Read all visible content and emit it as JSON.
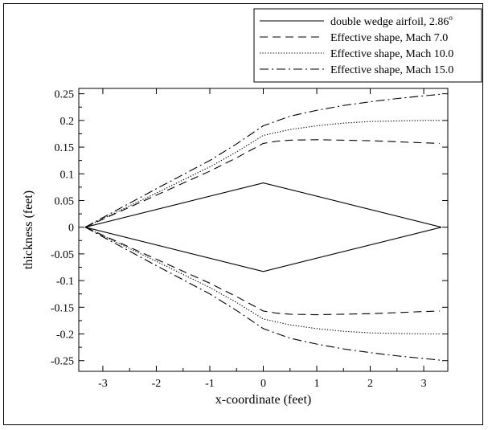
{
  "chart_data": {
    "type": "line",
    "title": "",
    "xlabel": "x-coordinate (feet)",
    "ylabel": "thickness (feet)",
    "xlim": [
      -3.45,
      3.45
    ],
    "ylim": [
      -0.27,
      0.26
    ],
    "x_ticks": [
      -3,
      -2,
      -1,
      0,
      1,
      2,
      3
    ],
    "x_tick_labels": [
      "-3",
      "-2",
      "-1",
      "0",
      "1",
      "2",
      "3"
    ],
    "y_ticks": [
      0.25,
      0.2,
      0.15,
      0.1,
      0.05,
      0,
      -0.05,
      -0.1,
      -0.15,
      -0.2,
      -0.25
    ],
    "y_tick_labels": [
      "0.25",
      "0.2",
      "0.15",
      "0.1",
      "0.05",
      "0",
      "-0.05",
      "-0.1",
      "-0.15",
      "-0.2",
      "-0.25"
    ],
    "grid": false,
    "legend_position": "top-right",
    "legend_box": true,
    "series": [
      {
        "name": "double wedge airfoil, 2.86",
        "name_superscript": "o",
        "dash": "solid",
        "color": "#000000",
        "x": [
          -3.33,
          0.0,
          3.33,
          0.0,
          -3.33
        ],
        "y": [
          0.0,
          0.083,
          0.0,
          -0.083,
          0.0
        ]
      },
      {
        "name": "Effective shape, Mach 7.0",
        "dash": "dashed",
        "color": "#000000",
        "upper_x": [
          -3.33,
          -3.0,
          -2.0,
          -1.0,
          -0.5,
          0.0,
          0.25,
          0.5,
          1.0,
          1.5,
          2.0,
          2.5,
          3.0,
          3.3
        ],
        "upper_y": [
          0.0,
          0.015,
          0.06,
          0.105,
          0.13,
          0.157,
          0.161,
          0.163,
          0.164,
          0.163,
          0.162,
          0.16,
          0.158,
          0.157
        ],
        "lower_x": [
          -3.33,
          -3.0,
          -2.0,
          -1.0,
          -0.5,
          0.0,
          0.25,
          0.5,
          1.0,
          1.5,
          2.0,
          2.5,
          3.0,
          3.3
        ],
        "lower_y": [
          0.0,
          -0.015,
          -0.06,
          -0.105,
          -0.13,
          -0.157,
          -0.161,
          -0.163,
          -0.164,
          -0.163,
          -0.162,
          -0.16,
          -0.158,
          -0.157
        ]
      },
      {
        "name": "Effective shape, Mach 10.0",
        "dash": "dotted",
        "color": "#000000",
        "upper_x": [
          -3.33,
          -3.0,
          -2.0,
          -1.0,
          -0.5,
          0.0,
          0.5,
          1.0,
          1.5,
          2.0,
          2.5,
          3.0,
          3.3
        ],
        "upper_y": [
          0.0,
          0.016,
          0.064,
          0.113,
          0.141,
          0.172,
          0.183,
          0.19,
          0.195,
          0.198,
          0.199,
          0.2,
          0.2
        ],
        "lower_x": [
          -3.33,
          -3.0,
          -2.0,
          -1.0,
          -0.5,
          0.0,
          0.5,
          1.0,
          1.5,
          2.0,
          2.5,
          3.0,
          3.3
        ],
        "lower_y": [
          0.0,
          -0.016,
          -0.064,
          -0.113,
          -0.141,
          -0.172,
          -0.183,
          -0.19,
          -0.195,
          -0.198,
          -0.199,
          -0.2,
          -0.2
        ]
      },
      {
        "name": "Effective shape, Mach 15.0",
        "dash": "dashdot",
        "color": "#000000",
        "upper_x": [
          -3.33,
          -3.0,
          -2.0,
          -1.0,
          -0.5,
          0.0,
          0.5,
          1.0,
          1.5,
          2.0,
          2.5,
          3.0,
          3.3
        ],
        "upper_y": [
          0.0,
          0.018,
          0.072,
          0.125,
          0.156,
          0.19,
          0.208,
          0.219,
          0.228,
          0.235,
          0.241,
          0.246,
          0.249
        ],
        "lower_x": [
          -3.33,
          -3.0,
          -2.0,
          -1.0,
          -0.5,
          0.0,
          0.5,
          1.0,
          1.5,
          2.0,
          2.5,
          3.0,
          3.3
        ],
        "lower_y": [
          0.0,
          -0.018,
          -0.072,
          -0.125,
          -0.156,
          -0.19,
          -0.208,
          -0.219,
          -0.228,
          -0.235,
          -0.241,
          -0.246,
          -0.249
        ]
      }
    ]
  }
}
